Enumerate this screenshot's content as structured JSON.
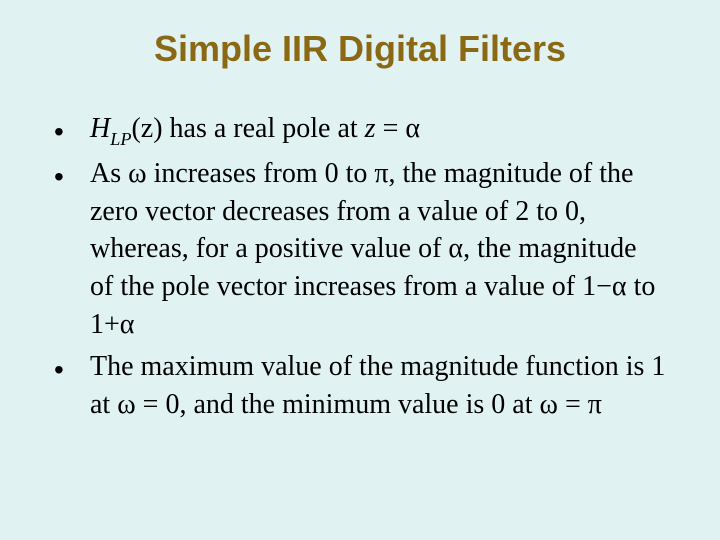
{
  "slide": {
    "title": "Simple IIR Digital Filters",
    "title_color": "#8b6914",
    "title_fontsize": 36,
    "background_color": "#e0f2f2",
    "body_fontsize": 28,
    "body_color": "#000000",
    "bullets": [
      {
        "func_H": "H",
        "func_sub": "LP",
        "func_arg": "(z)",
        "t1": " has a real pole at ",
        "z": "z",
        "eq": " = ",
        "alpha": "α"
      },
      {
        "t1": "As ",
        "omega1": "ω",
        "t2": " increases from 0 to ",
        "pi1": "π",
        "t3": ", the magnitude of the zero vector decreases from a value of 2 to 0, whereas, for a positive value of ",
        "alpha1": "α",
        "t4": ", the magnitude of the pole vector increases from a value of ",
        "m1a": "1",
        "m1b": "−",
        "m1c": "α",
        "t5": " to ",
        "m2a": "1",
        "m2b": "+",
        "m2c": "α"
      },
      {
        "t1": "The maximum value of the magnitude function is 1 at ",
        "omega1": "ω",
        "t2": " = 0, and the minimum value is 0 at ",
        "omega2": "ω",
        "t3": " = ",
        "pi": "π"
      }
    ]
  }
}
